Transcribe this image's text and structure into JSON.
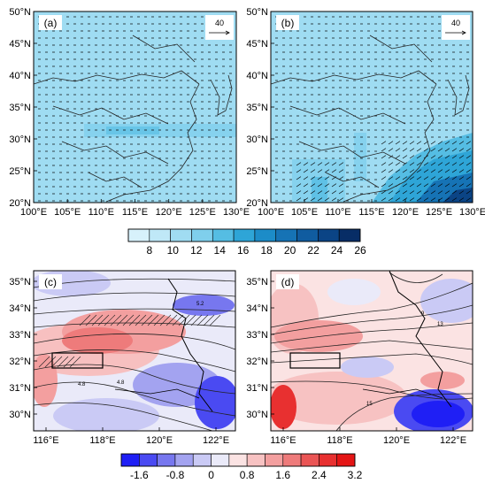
{
  "panels": [
    {
      "id": "a",
      "label": "(a)",
      "vector_ref": "40",
      "lat_ticks": [
        "50°N",
        "45°N",
        "40°N",
        "35°N",
        "30°N",
        "25°N",
        "20°N"
      ],
      "lon_ticks": [
        "100°E",
        "105°E",
        "110°E",
        "115°E",
        "120°E",
        "125°E",
        "130°E"
      ]
    },
    {
      "id": "b",
      "label": "(b)",
      "vector_ref": "40",
      "lat_ticks": [
        "50°N",
        "45°N",
        "40°N",
        "35°N",
        "30°N",
        "25°N",
        "20°N"
      ],
      "lon_ticks": [
        "100°E",
        "105°E",
        "110°E",
        "115°E",
        "120°E",
        "125°E",
        "130°E"
      ]
    },
    {
      "id": "c",
      "label": "(c)",
      "lat_ticks": [
        "35°N",
        "34°N",
        "33°N",
        "32°N",
        "31°N",
        "30°N"
      ],
      "lon_ticks": [
        "116°E",
        "118°E",
        "120°E",
        "122°E"
      ],
      "contour_labels": [
        "5.2",
        "4.8",
        "5.2",
        "4.8"
      ]
    },
    {
      "id": "d",
      "label": "(d)",
      "lat_ticks": [
        "35°N",
        "34°N",
        "33°N",
        "32°N",
        "31°N",
        "30°N"
      ],
      "lon_ticks": [
        "116°E",
        "118°E",
        "120°E",
        "122°E"
      ],
      "contour_labels": [
        "9",
        "13",
        "15"
      ]
    }
  ],
  "colorbar_top": {
    "labels": [
      "8",
      "10",
      "12",
      "14",
      "16",
      "18",
      "20",
      "22",
      "24",
      "26"
    ],
    "colors": [
      "#d7f1fb",
      "#bfe8f7",
      "#a0dcf2",
      "#7fcfec",
      "#55bde3",
      "#2ea5d7",
      "#1c8cc8",
      "#1673b5",
      "#105ca0",
      "#0b4485",
      "#072d66"
    ]
  },
  "colorbar_bottom": {
    "labels": [
      "-1.6",
      "-0.8",
      "0",
      "0.8",
      "1.6",
      "2.4",
      "3.2"
    ],
    "colors": [
      "#1f1ff5",
      "#4a4af2",
      "#7777ef",
      "#a3a3f0",
      "#cacaf5",
      "#eaeaf9",
      "#fbe3e3",
      "#f7c2c2",
      "#f39f9f",
      "#ee7b7b",
      "#ea5555",
      "#e83030",
      "#e41515"
    ]
  }
}
